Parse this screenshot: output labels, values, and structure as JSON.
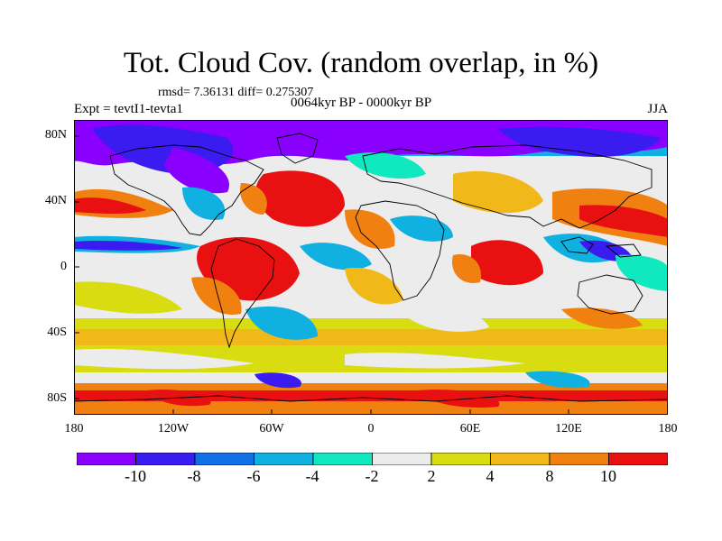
{
  "title": "Tot. Cloud Cov. (random overlap, in %)",
  "subtitle": "rmsd= 7.36131 diff= 0.275307",
  "period": "0064kyr BP - 0000kyr BP",
  "experiment": "Expt = tevtI1-tevta1",
  "season": "JJA",
  "y_axis": {
    "ticks": [
      "80N",
      "40N",
      "0",
      "40S",
      "80S"
    ],
    "values": [
      80,
      40,
      0,
      -40,
      -80
    ],
    "range": [
      -90,
      90
    ]
  },
  "x_axis": {
    "ticks": [
      "180",
      "120W",
      "60W",
      "0",
      "60E",
      "120E",
      "180"
    ],
    "values": [
      -180,
      -120,
      -60,
      0,
      60,
      120,
      180
    ],
    "range": [
      -180,
      180
    ]
  },
  "colorbar": {
    "labels": [
      "-10",
      "-8",
      "-6",
      "-4",
      "-2",
      "2",
      "4",
      "8",
      "10"
    ],
    "colors": [
      "#8a00ff",
      "#3a1cf0",
      "#1070e8",
      "#10b0e0",
      "#10e8c0",
      "#ececec",
      "#d8dc10",
      "#f0b818",
      "#f08010",
      "#e81010"
    ]
  },
  "field_colors": {
    "strong_neg": "#8a00ff",
    "neg": "#3a1cf0",
    "mid_neg": "#1070e8",
    "weak_neg": "#10b0e0",
    "slight_neg": "#10e8c0",
    "neutral": "#ececec",
    "slight_pos": "#d8dc10",
    "mid_pos": "#f0b818",
    "pos": "#f08010",
    "strong_pos": "#e81010"
  }
}
